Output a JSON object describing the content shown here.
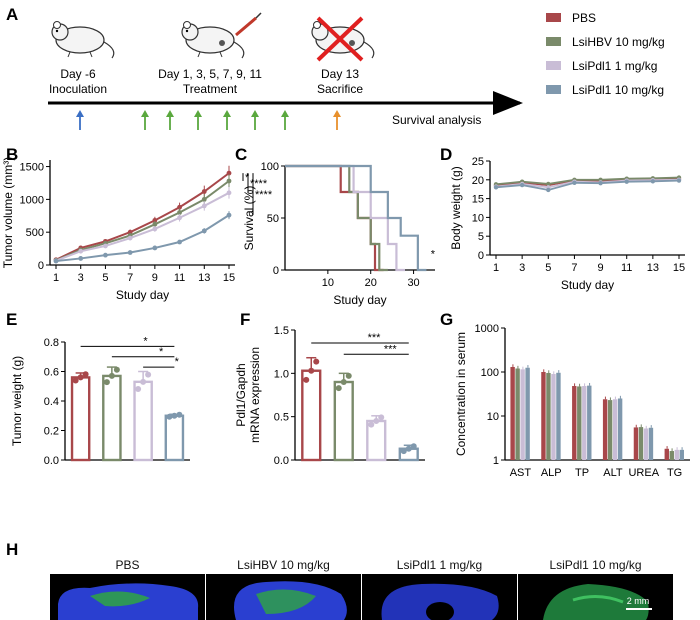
{
  "panel_letters": [
    "A",
    "B",
    "C",
    "D",
    "E",
    "F",
    "G",
    "H"
  ],
  "colors": {
    "PBS": "#a8474a",
    "LsiHBV": "#7a8a6a",
    "LsiPdl1_1": "#c9bdd6",
    "LsiPdl1_10": "#7f98ad"
  },
  "timeline": {
    "day_minus6": "Day -6",
    "inoculation": "Inoculation",
    "days": "Day 1, 3, 5, 7, 9, 11",
    "treatment": "Treatment",
    "day13": "Day 13",
    "sacrifice": "Sacrifice",
    "survival": "Survival analysis"
  },
  "legend": [
    "PBS",
    "LsiHBV 10 mg/kg",
    "LsiPdl1 1 mg/kg",
    "LsiPdl1 10 mg/kg"
  ],
  "micro_labels": [
    "PBS",
    "LsiHBV 10 mg/kg",
    "LsiPdl1 1 mg/kg",
    "LsiPdl1 10 mg/kg"
  ],
  "scale_bar": "2 mm",
  "chart_data": [
    {
      "panel": "B",
      "type": "line",
      "ylabel": "Tumor volume (mm³)",
      "xlabel": "Study day",
      "x": [
        1,
        3,
        5,
        7,
        9,
        11,
        13,
        15
      ],
      "ylim": [
        0,
        1600
      ],
      "yticks": [
        "0",
        "500",
        "1000",
        "1500"
      ],
      "xticks": [
        "1",
        "3",
        "5",
        "7",
        "9",
        "11",
        "13",
        "15"
      ],
      "series": [
        {
          "name": "PBS",
          "values": [
            80,
            260,
            360,
            500,
            680,
            880,
            1120,
            1400
          ]
        },
        {
          "name": "LsiHBV 10 mg/kg",
          "values": [
            70,
            230,
            330,
            450,
            620,
            800,
            1000,
            1280
          ]
        },
        {
          "name": "LsiPdl1 1 mg/kg",
          "values": [
            65,
            210,
            290,
            410,
            550,
            720,
            900,
            1100
          ]
        },
        {
          "name": "LsiPdl1 10 mg/kg",
          "values": [
            60,
            100,
            150,
            190,
            260,
            350,
            520,
            760
          ]
        }
      ],
      "significance": [
        "*",
        "****",
        "****"
      ]
    },
    {
      "panel": "C",
      "type": "line",
      "ylabel": "Survival (%)",
      "xlabel": "Study day",
      "xlim": [
        0,
        35
      ],
      "ylim": [
        0,
        100
      ],
      "yticks": [
        "0",
        "50",
        "100"
      ],
      "xticks": [
        "10",
        "20",
        "30"
      ],
      "series": [
        {
          "name": "PBS",
          "points": [
            [
              0,
              100
            ],
            [
              13,
              100
            ],
            [
              13,
              75
            ],
            [
              17,
              75
            ],
            [
              17,
              50
            ],
            [
              20,
              50
            ],
            [
              20,
              25
            ],
            [
              21,
              25
            ],
            [
              21,
              0
            ],
            [
              23,
              0
            ]
          ]
        },
        {
          "name": "LsiHBV 10 mg/kg",
          "points": [
            [
              0,
              100
            ],
            [
              15,
              100
            ],
            [
              15,
              75
            ],
            [
              17,
              75
            ],
            [
              17,
              50
            ],
            [
              20,
              50
            ],
            [
              20,
              25
            ],
            [
              22,
              25
            ],
            [
              22,
              0
            ],
            [
              24,
              0
            ]
          ]
        },
        {
          "name": "LsiPdl1 1 mg/kg",
          "points": [
            [
              0,
              100
            ],
            [
              16,
              100
            ],
            [
              16,
              75
            ],
            [
              20,
              75
            ],
            [
              20,
              50
            ],
            [
              24,
              50
            ],
            [
              24,
              25
            ],
            [
              26,
              25
            ],
            [
              26,
              0
            ],
            [
              28,
              0
            ]
          ]
        },
        {
          "name": "LsiPdl1 10 mg/kg",
          "points": [
            [
              0,
              100
            ],
            [
              20,
              100
            ],
            [
              20,
              75
            ],
            [
              24,
              75
            ],
            [
              24,
              50
            ],
            [
              27,
              50
            ],
            [
              27,
              33
            ],
            [
              31,
              33
            ],
            [
              31,
              0
            ],
            [
              33,
              0
            ]
          ]
        }
      ],
      "significance": [
        "*"
      ]
    },
    {
      "panel": "D",
      "type": "line",
      "ylabel": "Body weight (g)",
      "xlabel": "Study day",
      "x": [
        1,
        3,
        5,
        7,
        9,
        11,
        13,
        15
      ],
      "ylim": [
        0,
        25
      ],
      "yticks": [
        "0",
        "5",
        "10",
        "15",
        "20",
        "25"
      ],
      "xticks": [
        "1",
        "3",
        "5",
        "7",
        "9",
        "11",
        "13",
        "15"
      ],
      "series": [
        {
          "name": "PBS",
          "values": [
            18.5,
            19.2,
            18.6,
            19.8,
            19.7,
            20.0,
            20.1,
            20.2
          ]
        },
        {
          "name": "LsiHBV 10 mg/kg",
          "values": [
            18.8,
            19.5,
            18.9,
            20.0,
            20.0,
            20.3,
            20.4,
            20.6
          ]
        },
        {
          "name": "LsiPdl1 1 mg/kg",
          "values": [
            18.2,
            18.9,
            18.0,
            19.5,
            19.3,
            19.8,
            19.9,
            20.0
          ]
        },
        {
          "name": "LsiPdl1 10 mg/kg",
          "values": [
            18.0,
            18.6,
            17.3,
            19.2,
            19.1,
            19.5,
            19.6,
            19.8
          ]
        }
      ]
    },
    {
      "panel": "E",
      "type": "bar",
      "ylabel": "Tumor weight (g)",
      "categories": [
        "PBS",
        "LsiHBV 10 mg/kg",
        "LsiPdl1 1 mg/kg",
        "LsiPdl1 10 mg/kg"
      ],
      "values": [
        0.56,
        0.57,
        0.53,
        0.3
      ],
      "errors": [
        0.03,
        0.06,
        0.07,
        0.01
      ],
      "ylim": [
        0,
        0.8
      ],
      "yticks": [
        "0.0",
        "0.2",
        "0.4",
        "0.6",
        "0.8"
      ],
      "significance": [
        "*",
        "*",
        "*"
      ]
    },
    {
      "panel": "F",
      "type": "bar",
      "ylabel": "Pdl1/Gapdh\nmRNA expression",
      "categories": [
        "PBS",
        "LsiHBV 10 mg/kg",
        "LsiPdl1 1 mg/kg",
        "LsiPdl1 10 mg/kg"
      ],
      "values": [
        1.03,
        0.9,
        0.45,
        0.13
      ],
      "errors": [
        0.15,
        0.1,
        0.06,
        0.04
      ],
      "ylim": [
        0,
        1.5
      ],
      "yticks": [
        "0.0",
        "0.5",
        "1.0",
        "1.5"
      ],
      "significance": [
        "***",
        "***"
      ]
    },
    {
      "panel": "G",
      "type": "bar",
      "ylabel": "Concentration in serum",
      "categories": [
        "AST",
        "ALP",
        "TP",
        "ALT",
        "UREA",
        "TG"
      ],
      "yscale": "log",
      "ylim": [
        1,
        1000
      ],
      "yticks": [
        "1",
        "10",
        "100",
        "1000"
      ],
      "series": [
        {
          "name": "PBS",
          "values": [
            130,
            100,
            48,
            24,
            5.5,
            1.8
          ]
        },
        {
          "name": "LsiHBV 10 mg/kg",
          "values": [
            120,
            95,
            47,
            23,
            5.6,
            1.6
          ]
        },
        {
          "name": "LsiPdl1 1 mg/kg",
          "values": [
            115,
            90,
            48,
            24,
            5.2,
            1.7
          ]
        },
        {
          "name": "LsiPdl1 10 mg/kg",
          "values": [
            125,
            96,
            49,
            25,
            5.4,
            1.7
          ]
        }
      ]
    }
  ]
}
